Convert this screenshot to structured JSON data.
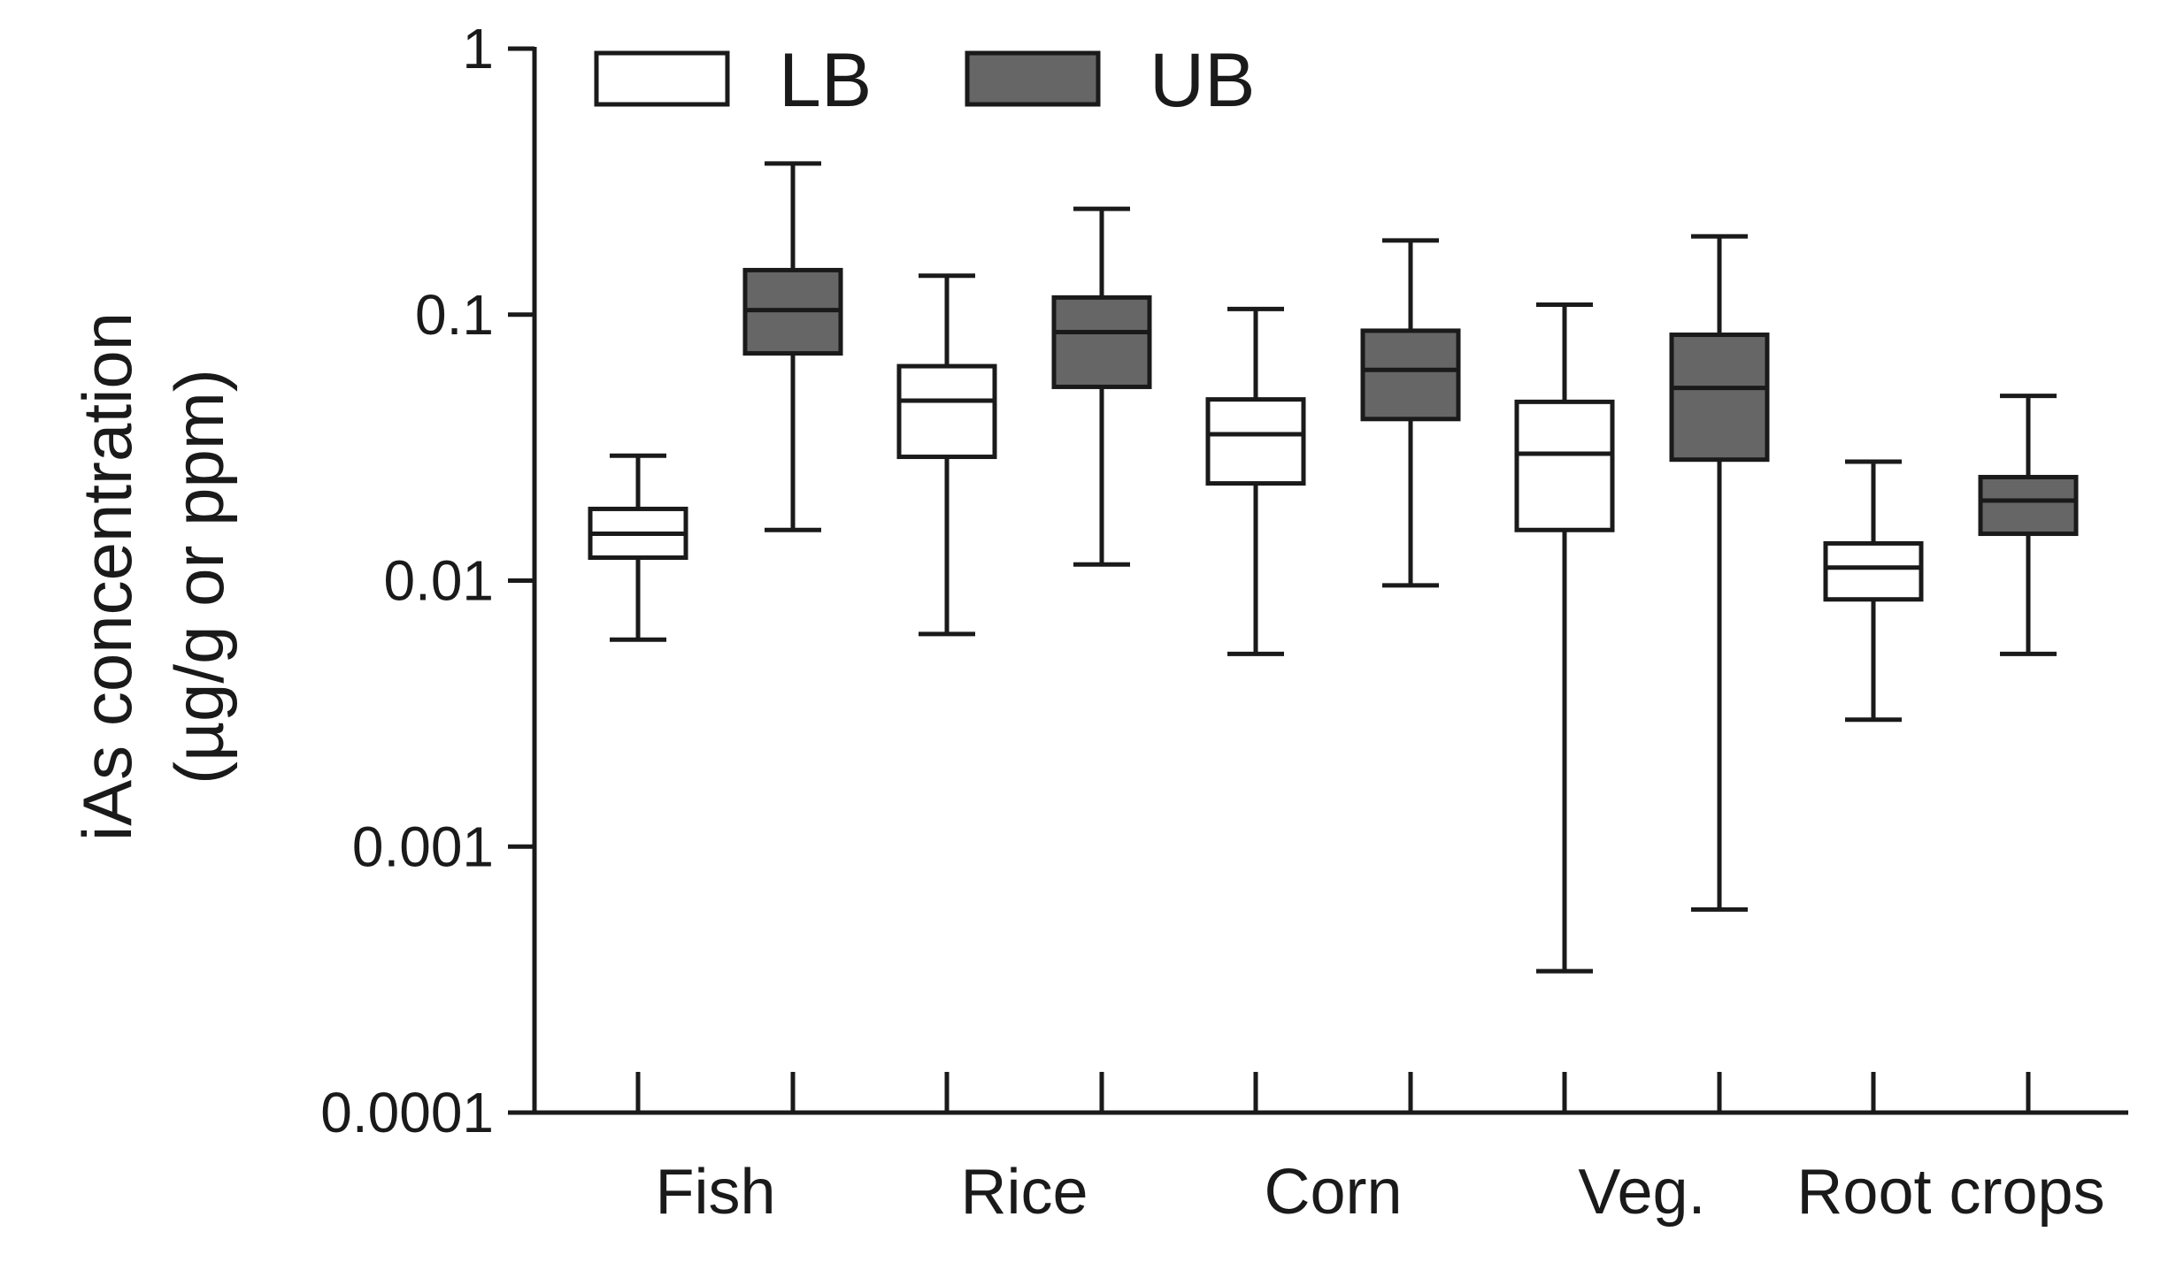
{
  "chart_data": {
    "type": "boxplot",
    "title": "",
    "xlabel": "",
    "ylabel_line1": "iAs concentration",
    "ylabel_line2": "(µg/g or ppm)",
    "yscale": "log",
    "ylim": [
      0.0001,
      1
    ],
    "yticks": [
      {
        "value": 1,
        "label": "1"
      },
      {
        "value": 0.1,
        "label": "0.1"
      },
      {
        "value": 0.01,
        "label": "0.01"
      },
      {
        "value": 0.001,
        "label": "0.001"
      },
      {
        "value": 0.0001,
        "label": "0.0001"
      }
    ],
    "legend_position": "top-left",
    "categories": [
      "Fish",
      "Rice",
      "Corn",
      "Veg.",
      "Root crops"
    ],
    "series": [
      {
        "name": "LB",
        "color": "#ffffff",
        "boxes": [
          {
            "min": 0.006,
            "q1": 0.0122,
            "median": 0.015,
            "q3": 0.0186,
            "max": 0.0295
          },
          {
            "min": 0.0063,
            "q1": 0.0292,
            "median": 0.0475,
            "q3": 0.064,
            "max": 0.14
          },
          {
            "min": 0.0053,
            "q1": 0.0232,
            "median": 0.0355,
            "q3": 0.048,
            "max": 0.105
          },
          {
            "min": 0.00034,
            "q1": 0.0155,
            "median": 0.03,
            "q3": 0.047,
            "max": 0.109
          },
          {
            "min": 0.003,
            "q1": 0.0085,
            "median": 0.0112,
            "q3": 0.0138,
            "max": 0.028
          }
        ]
      },
      {
        "name": "UB",
        "color": "#666666",
        "boxes": [
          {
            "min": 0.0155,
            "q1": 0.0715,
            "median": 0.104,
            "q3": 0.147,
            "max": 0.37
          },
          {
            "min": 0.0115,
            "q1": 0.0535,
            "median": 0.086,
            "q3": 0.116,
            "max": 0.25
          },
          {
            "min": 0.0096,
            "q1": 0.0405,
            "median": 0.062,
            "q3": 0.087,
            "max": 0.19
          },
          {
            "min": 0.00058,
            "q1": 0.0285,
            "median": 0.053,
            "q3": 0.084,
            "max": 0.197
          },
          {
            "min": 0.0053,
            "q1": 0.015,
            "median": 0.02,
            "q3": 0.0245,
            "max": 0.0495
          }
        ]
      }
    ]
  }
}
